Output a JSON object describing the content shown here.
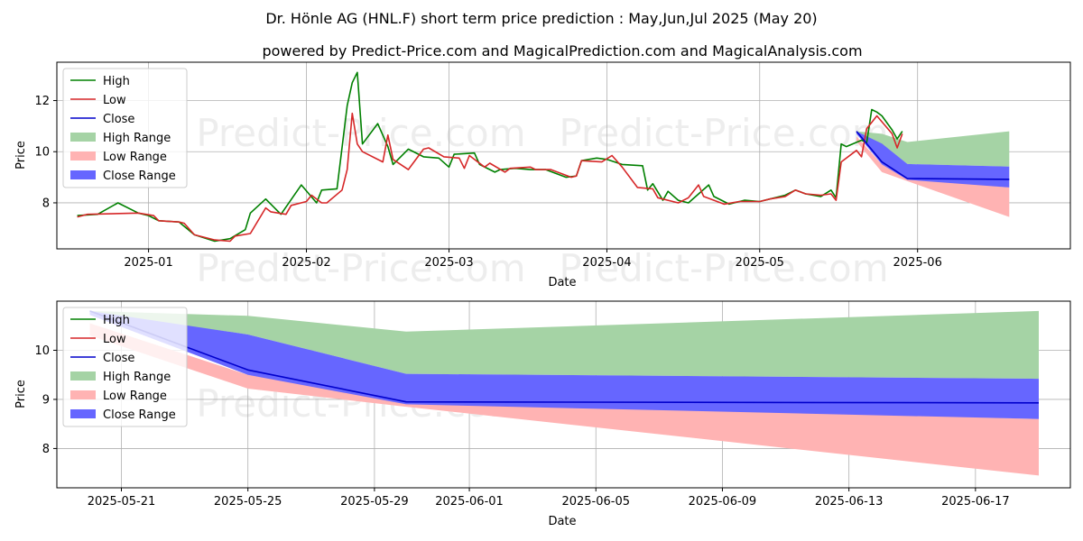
{
  "title_line1": "Dr. Hönle AG (HNL.F) short term price prediction : May,Jun,Jul 2025 (May 20)",
  "title_line2": "powered by Predict-Price.com and MagicalPrediction.com and MagicalAnalysis.com",
  "watermark": "Predict-Price.com",
  "legend": {
    "high": "High",
    "low": "Low",
    "close": "Close",
    "high_range": "High Range",
    "low_range": "Low Range",
    "close_range": "Close Range"
  },
  "colors": {
    "high": "#008000",
    "low": "#d62728",
    "close": "#0000cc",
    "high_range": "#a5d3a5",
    "low_range": "#ffb3b3",
    "close_range": "#6666ff"
  },
  "chart_data": [
    {
      "type": "line",
      "xlabel": "Date",
      "ylabel": "Price",
      "x_ticks": [
        "2025-01",
        "2025-02",
        "2025-03",
        "2025-04",
        "2025-05",
        "2025-06"
      ],
      "y_ticks": [
        8,
        10,
        12
      ],
      "grid": true,
      "legend_position": "upper-left",
      "history_high": [
        [
          "2024-12-18",
          7.5
        ],
        [
          "2024-12-22",
          7.55
        ],
        [
          "2024-12-26",
          8.0
        ],
        [
          "2024-12-30",
          7.6
        ],
        [
          "2025-01-01",
          7.5
        ],
        [
          "2025-01-03",
          7.3
        ],
        [
          "2025-01-07",
          7.25
        ],
        [
          "2025-01-10",
          6.75
        ],
        [
          "2025-01-14",
          6.5
        ],
        [
          "2025-01-17",
          6.6
        ],
        [
          "2025-01-20",
          6.95
        ],
        [
          "2025-01-21",
          7.6
        ],
        [
          "2025-01-24",
          8.15
        ],
        [
          "2025-01-27",
          7.55
        ],
        [
          "2025-01-31",
          8.7
        ],
        [
          "2025-02-03",
          8.0
        ],
        [
          "2025-02-04",
          8.5
        ],
        [
          "2025-02-07",
          8.55
        ],
        [
          "2025-02-09",
          11.8
        ],
        [
          "2025-02-10",
          12.7
        ],
        [
          "2025-02-11",
          13.1
        ],
        [
          "2025-02-12",
          10.3
        ],
        [
          "2025-02-15",
          11.1
        ],
        [
          "2025-02-17",
          10.2
        ],
        [
          "2025-02-18",
          9.5
        ],
        [
          "2025-02-21",
          10.1
        ],
        [
          "2025-02-24",
          9.8
        ],
        [
          "2025-02-27",
          9.75
        ],
        [
          "2025-03-01",
          9.4
        ],
        [
          "2025-03-02",
          9.9
        ],
        [
          "2025-03-06",
          9.95
        ],
        [
          "2025-03-07",
          9.5
        ],
        [
          "2025-03-10",
          9.2
        ],
        [
          "2025-03-11",
          9.3
        ],
        [
          "2025-03-14",
          9.35
        ],
        [
          "2025-03-17",
          9.3
        ],
        [
          "2025-03-20",
          9.3
        ],
        [
          "2025-03-24",
          9.0
        ],
        [
          "2025-03-26",
          9.05
        ],
        [
          "2025-03-27",
          9.65
        ],
        [
          "2025-03-30",
          9.75
        ],
        [
          "2025-04-01",
          9.7
        ],
        [
          "2025-04-04",
          9.5
        ],
        [
          "2025-04-08",
          9.45
        ],
        [
          "2025-04-09",
          8.5
        ],
        [
          "2025-04-10",
          8.75
        ],
        [
          "2025-04-12",
          8.1
        ],
        [
          "2025-04-13",
          8.45
        ],
        [
          "2025-04-15",
          8.1
        ],
        [
          "2025-04-17",
          8.0
        ],
        [
          "2025-04-21",
          8.7
        ],
        [
          "2025-04-22",
          8.25
        ],
        [
          "2025-04-25",
          7.95
        ],
        [
          "2025-04-28",
          8.1
        ],
        [
          "2025-05-01",
          8.05
        ],
        [
          "2025-05-03",
          8.15
        ],
        [
          "2025-05-06",
          8.3
        ],
        [
          "2025-05-08",
          8.5
        ],
        [
          "2025-05-10",
          8.35
        ],
        [
          "2025-05-13",
          8.25
        ],
        [
          "2025-05-15",
          8.5
        ],
        [
          "2025-05-16",
          8.2
        ],
        [
          "2025-05-17",
          10.3
        ],
        [
          "2025-05-18",
          10.2
        ],
        [
          "2025-05-21",
          10.45
        ],
        [
          "2025-05-22",
          10.35
        ],
        [
          "2025-05-23",
          11.65
        ],
        [
          "2025-05-24",
          11.55
        ],
        [
          "2025-05-25",
          11.4
        ],
        [
          "2025-05-27",
          10.85
        ],
        [
          "2025-05-28",
          10.5
        ],
        [
          "2025-05-29",
          10.8
        ]
      ],
      "history_low": [
        [
          "2024-12-18",
          7.45
        ],
        [
          "2024-12-20",
          7.55
        ],
        [
          "2024-12-30",
          7.6
        ],
        [
          "2025-01-02",
          7.5
        ],
        [
          "2025-01-03",
          7.3
        ],
        [
          "2025-01-07",
          7.25
        ],
        [
          "2025-01-08",
          7.2
        ],
        [
          "2025-01-10",
          6.75
        ],
        [
          "2025-01-14",
          6.55
        ],
        [
          "2025-01-17",
          6.5
        ],
        [
          "2025-01-18",
          6.7
        ],
        [
          "2025-01-21",
          6.8
        ],
        [
          "2025-01-24",
          7.8
        ],
        [
          "2025-01-25",
          7.65
        ],
        [
          "2025-01-28",
          7.55
        ],
        [
          "2025-01-29",
          7.9
        ],
        [
          "2025-02-01",
          8.05
        ],
        [
          "2025-02-02",
          8.3
        ],
        [
          "2025-02-04",
          8.0
        ],
        [
          "2025-02-05",
          8.0
        ],
        [
          "2025-02-08",
          8.5
        ],
        [
          "2025-02-09",
          9.3
        ],
        [
          "2025-02-10",
          11.5
        ],
        [
          "2025-02-11",
          10.3
        ],
        [
          "2025-02-12",
          10.0
        ],
        [
          "2025-02-16",
          9.6
        ],
        [
          "2025-02-17",
          10.65
        ],
        [
          "2025-02-18",
          9.7
        ],
        [
          "2025-02-21",
          9.3
        ],
        [
          "2025-02-24",
          10.1
        ],
        [
          "2025-02-25",
          10.15
        ],
        [
          "2025-02-28",
          9.8
        ],
        [
          "2025-03-03",
          9.75
        ],
        [
          "2025-03-04",
          9.35
        ],
        [
          "2025-03-05",
          9.85
        ],
        [
          "2025-03-08",
          9.4
        ],
        [
          "2025-03-09",
          9.55
        ],
        [
          "2025-03-12",
          9.2
        ],
        [
          "2025-03-13",
          9.35
        ],
        [
          "2025-03-17",
          9.4
        ],
        [
          "2025-03-18",
          9.3
        ],
        [
          "2025-03-21",
          9.3
        ],
        [
          "2025-03-25",
          9.0
        ],
        [
          "2025-03-26",
          9.05
        ],
        [
          "2025-03-27",
          9.65
        ],
        [
          "2025-03-31",
          9.6
        ],
        [
          "2025-04-02",
          9.85
        ],
        [
          "2025-04-04",
          9.4
        ],
        [
          "2025-04-07",
          8.6
        ],
        [
          "2025-04-10",
          8.55
        ],
        [
          "2025-04-11",
          8.2
        ],
        [
          "2025-04-15",
          8.0
        ],
        [
          "2025-04-17",
          8.2
        ],
        [
          "2025-04-19",
          8.7
        ],
        [
          "2025-04-20",
          8.25
        ],
        [
          "2025-04-24",
          7.95
        ],
        [
          "2025-04-27",
          8.05
        ],
        [
          "2025-05-01",
          8.05
        ],
        [
          "2025-05-03",
          8.15
        ],
        [
          "2025-05-06",
          8.25
        ],
        [
          "2025-05-08",
          8.5
        ],
        [
          "2025-05-10",
          8.35
        ],
        [
          "2025-05-13",
          8.3
        ],
        [
          "2025-05-15",
          8.35
        ],
        [
          "2025-05-16",
          8.1
        ],
        [
          "2025-05-17",
          9.6
        ],
        [
          "2025-05-20",
          10.05
        ],
        [
          "2025-05-21",
          9.8
        ],
        [
          "2025-05-22",
          10.9
        ],
        [
          "2025-05-24",
          11.4
        ],
        [
          "2025-05-27",
          10.7
        ],
        [
          "2025-05-28",
          10.15
        ],
        [
          "2025-05-29",
          10.7
        ]
      ],
      "forecast_dates": [
        "2025-05-20",
        "2025-05-25",
        "2025-05-30",
        "2025-06-19"
      ],
      "forecast_close": [
        10.8,
        9.6,
        8.95,
        8.92
      ],
      "high_range_upper": [
        10.8,
        10.7,
        10.38,
        10.8
      ],
      "high_range_lower": [
        10.8,
        10.3,
        9.52,
        9.42
      ],
      "low_range_upper": [
        10.6,
        9.5,
        8.95,
        8.6
      ],
      "low_range_lower": [
        10.4,
        9.2,
        8.85,
        7.45
      ],
      "close_range_upper": [
        10.8,
        10.32,
        9.52,
        9.42
      ],
      "close_range_lower": [
        10.7,
        9.5,
        8.9,
        8.6
      ]
    },
    {
      "type": "line",
      "xlabel": "Date",
      "ylabel": "Price",
      "x_ticks": [
        "2025-05-21",
        "2025-05-25",
        "2025-05-29",
        "2025-06-01",
        "2025-06-05",
        "2025-06-09",
        "2025-06-13",
        "2025-06-17"
      ],
      "y_ticks": [
        8,
        9,
        10
      ],
      "ylim": [
        7.2,
        11.0
      ],
      "grid": true,
      "legend_position": "upper-left",
      "forecast_dates": [
        "2025-05-20",
        "2025-05-25",
        "2025-05-30",
        "2025-06-19"
      ],
      "forecast_close": [
        10.8,
        9.6,
        8.95,
        8.93
      ],
      "high_range_upper": [
        10.8,
        10.7,
        10.38,
        10.8
      ],
      "high_range_lower": [
        10.78,
        10.32,
        9.52,
        9.42
      ],
      "low_range_upper": [
        10.55,
        9.5,
        8.95,
        8.6
      ],
      "low_range_lower": [
        10.3,
        9.22,
        8.85,
        7.45
      ],
      "close_range_upper": [
        10.8,
        10.32,
        9.52,
        9.42
      ],
      "close_range_lower": [
        10.72,
        9.5,
        8.9,
        8.6
      ]
    }
  ]
}
